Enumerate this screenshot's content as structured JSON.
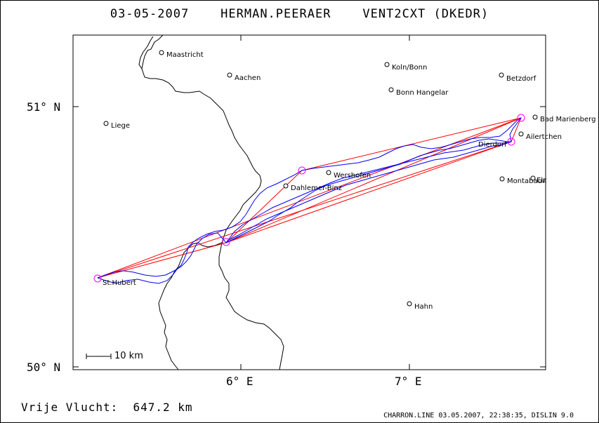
{
  "header": {
    "date": "03-05-2007",
    "pilot": "HERMAN.PEERAER",
    "glider": "VENT2CXT (DKEDR)"
  },
  "axes": {
    "lat_labels": [
      "51° N",
      "50° N"
    ],
    "lon_labels": [
      "6° E",
      "7° E"
    ]
  },
  "places": [
    {
      "name": "Maastricht"
    },
    {
      "name": "Aachen"
    },
    {
      "name": "Koln/Bonn"
    },
    {
      "name": "Bonn Hangelar"
    },
    {
      "name": "Betzdorf"
    },
    {
      "name": "Liege"
    },
    {
      "name": "Bad Marienberg"
    },
    {
      "name": "Ailertchen"
    },
    {
      "name": "Dierdorf"
    },
    {
      "name": "Wershofen"
    },
    {
      "name": "Dahlemer-Binz"
    },
    {
      "name": "Montabaur"
    },
    {
      "name": "Elz"
    },
    {
      "name": "St.Hubert"
    },
    {
      "name": "Hahn"
    }
  ],
  "scale": {
    "label": "10 km"
  },
  "footer": {
    "distance": "Vrije Vlucht:  647.2 km",
    "program_info": "CHARRON.LINE 03.05.2007, 22:38:35, DISLIN 9.0"
  },
  "colors": {
    "track": "#0000ff",
    "task_line": "#ff0000",
    "turnpoint": "#ff00ff",
    "border": "#000000"
  }
}
